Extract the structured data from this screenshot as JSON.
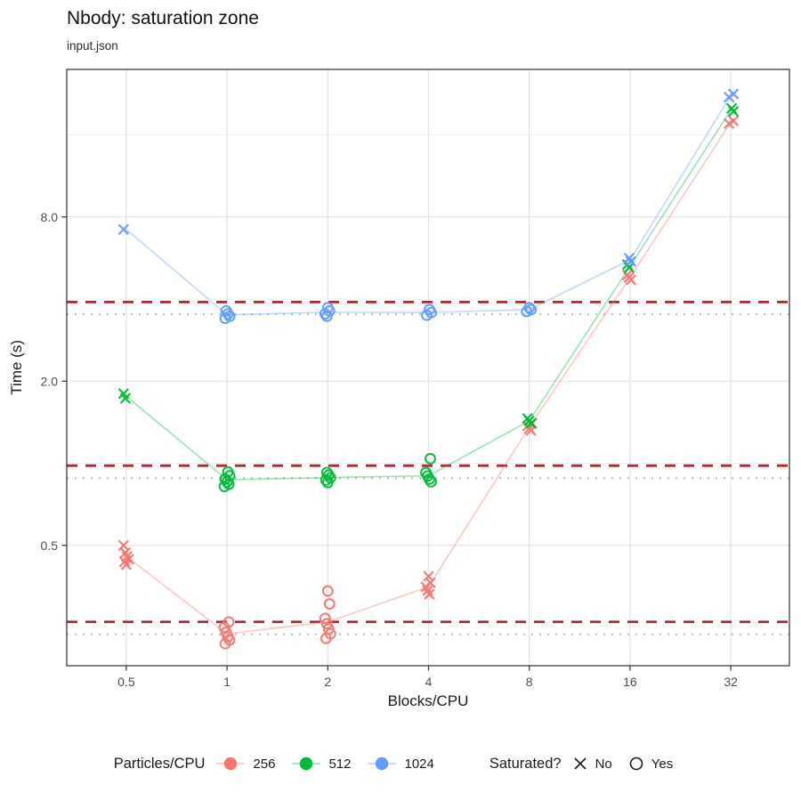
{
  "chart_data": {
    "type": "scatter",
    "title": "Nbody: saturation zone",
    "subtitle": "input.json",
    "xlabel": "Blocks/CPU",
    "ylabel": "Time (s)",
    "x_scale": "log2",
    "y_scale": "log10",
    "x_domain": [
      0.332,
      47.9
    ],
    "y_domain": [
      0.181,
      27.8
    ],
    "x_ticks": [
      0.5,
      1,
      2,
      4,
      8,
      16,
      32
    ],
    "x_tick_labels": [
      "0.5",
      "1",
      "2",
      "4",
      "8",
      "16",
      "32"
    ],
    "y_ticks": [
      0.5,
      2.0,
      8.0
    ],
    "y_tick_labels": [
      "0.5",
      "2.0",
      "8.0"
    ],
    "y_minor_ticks": [
      0.25,
      1.0,
      4.0,
      16.0
    ],
    "grid": true,
    "legend_position": "bottom",
    "threshold_lines": {
      "dashed": {
        "color": "#A52D2D",
        "values": [
          3.9,
          0.98,
          0.262
        ]
      },
      "dotted": {
        "color": "#BFBFBF",
        "values": [
          3.52,
          0.882,
          0.236
        ]
      }
    },
    "series": [
      {
        "name": "256",
        "color": "#F8766D",
        "line_x": [
          0.5,
          1,
          2,
          4,
          8,
          16,
          32
        ],
        "line_y": [
          0.455,
          0.237,
          0.262,
          0.352,
          1.36,
          4.8,
          17.8
        ],
        "points": [
          {
            "x": 0.5,
            "y": 0.5,
            "saturated": false
          },
          {
            "x": 0.5,
            "y": 0.47,
            "saturated": false
          },
          {
            "x": 0.5,
            "y": 0.455,
            "saturated": false
          },
          {
            "x": 0.5,
            "y": 0.445,
            "saturated": false
          },
          {
            "x": 0.5,
            "y": 0.435,
            "saturated": false
          },
          {
            "x": 0.5,
            "y": 0.425,
            "saturated": false
          },
          {
            "x": 1,
            "y": 0.262,
            "saturated": true
          },
          {
            "x": 1,
            "y": 0.25,
            "saturated": true
          },
          {
            "x": 1,
            "y": 0.24,
            "saturated": true
          },
          {
            "x": 1,
            "y": 0.231,
            "saturated": true
          },
          {
            "x": 1,
            "y": 0.225,
            "saturated": true
          },
          {
            "x": 1,
            "y": 0.218,
            "saturated": true
          },
          {
            "x": 2,
            "y": 0.34,
            "saturated": true
          },
          {
            "x": 2,
            "y": 0.305,
            "saturated": true
          },
          {
            "x": 2,
            "y": 0.27,
            "saturated": true
          },
          {
            "x": 2,
            "y": 0.258,
            "saturated": true
          },
          {
            "x": 2,
            "y": 0.247,
            "saturated": true
          },
          {
            "x": 2,
            "y": 0.237,
            "saturated": true
          },
          {
            "x": 2,
            "y": 0.228,
            "saturated": true
          },
          {
            "x": 4,
            "y": 0.385,
            "saturated": false
          },
          {
            "x": 4,
            "y": 0.365,
            "saturated": false
          },
          {
            "x": 4,
            "y": 0.352,
            "saturated": false
          },
          {
            "x": 4,
            "y": 0.341,
            "saturated": false
          },
          {
            "x": 4,
            "y": 0.331,
            "saturated": false
          },
          {
            "x": 8,
            "y": 1.4,
            "saturated": false
          },
          {
            "x": 8,
            "y": 1.37,
            "saturated": false
          },
          {
            "x": 8,
            "y": 1.34,
            "saturated": false
          },
          {
            "x": 8,
            "y": 1.32,
            "saturated": false
          },
          {
            "x": 16,
            "y": 4.9,
            "saturated": false
          },
          {
            "x": 16,
            "y": 4.8,
            "saturated": false
          },
          {
            "x": 16,
            "y": 4.7,
            "saturated": false
          },
          {
            "x": 32,
            "y": 18.0,
            "saturated": false
          },
          {
            "x": 32,
            "y": 17.6,
            "saturated": false
          }
        ]
      },
      {
        "name": "512",
        "color": "#00BA38",
        "line_x": [
          0.5,
          1,
          2,
          4,
          8,
          16,
          32
        ],
        "line_y": [
          1.76,
          0.87,
          0.886,
          0.9,
          1.43,
          5.28,
          19.7
        ],
        "points": [
          {
            "x": 0.5,
            "y": 1.8,
            "saturated": false
          },
          {
            "x": 0.5,
            "y": 1.73,
            "saturated": false
          },
          {
            "x": 1,
            "y": 0.93,
            "saturated": true
          },
          {
            "x": 1,
            "y": 0.9,
            "saturated": true
          },
          {
            "x": 1,
            "y": 0.875,
            "saturated": true
          },
          {
            "x": 1,
            "y": 0.855,
            "saturated": true
          },
          {
            "x": 1,
            "y": 0.838,
            "saturated": true
          },
          {
            "x": 1,
            "y": 0.822,
            "saturated": true
          },
          {
            "x": 2,
            "y": 0.925,
            "saturated": true
          },
          {
            "x": 2,
            "y": 0.905,
            "saturated": true
          },
          {
            "x": 2,
            "y": 0.885,
            "saturated": true
          },
          {
            "x": 2,
            "y": 0.868,
            "saturated": true
          },
          {
            "x": 2,
            "y": 0.85,
            "saturated": true
          },
          {
            "x": 4,
            "y": 1.04,
            "saturated": true
          },
          {
            "x": 4,
            "y": 0.925,
            "saturated": true
          },
          {
            "x": 4,
            "y": 0.898,
            "saturated": true
          },
          {
            "x": 4,
            "y": 0.875,
            "saturated": true
          },
          {
            "x": 4,
            "y": 0.855,
            "saturated": true
          },
          {
            "x": 8,
            "y": 1.46,
            "saturated": false
          },
          {
            "x": 8,
            "y": 1.43,
            "saturated": false
          },
          {
            "x": 8,
            "y": 1.4,
            "saturated": false
          },
          {
            "x": 16,
            "y": 5.35,
            "saturated": false
          },
          {
            "x": 16,
            "y": 5.22,
            "saturated": false
          },
          {
            "x": 32,
            "y": 20.0,
            "saturated": false
          },
          {
            "x": 32,
            "y": 19.5,
            "saturated": false
          }
        ]
      },
      {
        "name": "1024",
        "color": "#619CFF",
        "line_x": [
          0.5,
          1,
          2,
          4,
          8,
          16,
          32
        ],
        "line_y": [
          7.2,
          3.5,
          3.58,
          3.57,
          3.66,
          5.57,
          22.3
        ],
        "points": [
          {
            "x": 0.5,
            "y": 7.2,
            "saturated": false
          },
          {
            "x": 1,
            "y": 3.62,
            "saturated": true
          },
          {
            "x": 1,
            "y": 3.53,
            "saturated": true
          },
          {
            "x": 1,
            "y": 3.46,
            "saturated": true
          },
          {
            "x": 1,
            "y": 3.4,
            "saturated": true
          },
          {
            "x": 2,
            "y": 3.72,
            "saturated": true
          },
          {
            "x": 2,
            "y": 3.62,
            "saturated": true
          },
          {
            "x": 2,
            "y": 3.53,
            "saturated": true
          },
          {
            "x": 2,
            "y": 3.46,
            "saturated": true
          },
          {
            "x": 4,
            "y": 3.66,
            "saturated": true
          },
          {
            "x": 4,
            "y": 3.57,
            "saturated": true
          },
          {
            "x": 4,
            "y": 3.49,
            "saturated": true
          },
          {
            "x": 8,
            "y": 3.72,
            "saturated": true
          },
          {
            "x": 8,
            "y": 3.66,
            "saturated": true
          },
          {
            "x": 8,
            "y": 3.6,
            "saturated": true
          },
          {
            "x": 16,
            "y": 5.65,
            "saturated": false
          },
          {
            "x": 16,
            "y": 5.5,
            "saturated": false
          },
          {
            "x": 32,
            "y": 22.6,
            "saturated": false
          },
          {
            "x": 32,
            "y": 22.0,
            "saturated": false
          }
        ]
      }
    ],
    "legend": {
      "color_title": "Particles/CPU",
      "color_items": [
        {
          "label": "256",
          "color": "#F8766D"
        },
        {
          "label": "512",
          "color": "#00BA38"
        },
        {
          "label": "1024",
          "color": "#619CFF"
        }
      ],
      "shape_title": "Saturated?",
      "shape_items": [
        {
          "label": "No",
          "shape": "x"
        },
        {
          "label": "Yes",
          "shape": "circle"
        }
      ]
    },
    "style_colors": {
      "grid_major": "#E4E4E4",
      "grid_minor": "#F0F0F0",
      "panel_border": "#2E2E2E",
      "tick_label": "#4D4D4D",
      "text": "#1A1A1A"
    }
  }
}
